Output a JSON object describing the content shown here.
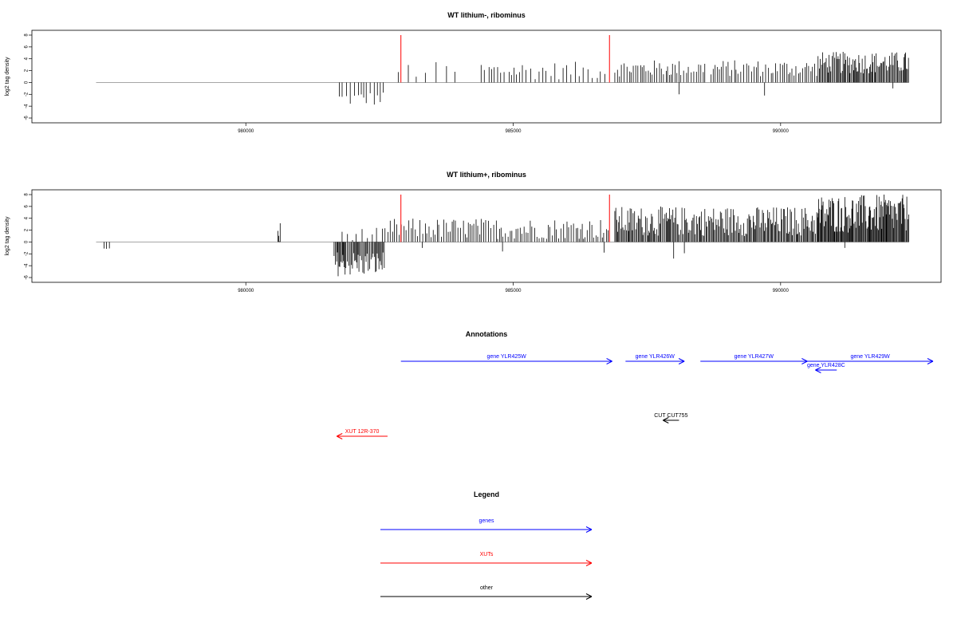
{
  "colors": {
    "gene": "#0000ff",
    "xut": "#ff0000",
    "other": "#000000",
    "marker": "#ff0000",
    "bar": "#000000",
    "baseline": "#999999"
  },
  "chart_data": [
    {
      "type": "bar",
      "title": "WT lithium-, ribominus",
      "ylabel": "log2 tag density",
      "xlim": [
        976000,
        993000
      ],
      "ylim": [
        -6,
        8
      ],
      "yticks": [
        "8",
        "6",
        "4",
        "2",
        "0",
        "-2",
        "-4",
        "-6"
      ],
      "xticks": [
        "980000",
        "985000",
        "990000"
      ],
      "baseline": [
        977200,
        992400
      ],
      "markers": [
        982900,
        986800
      ],
      "series": [
        {
          "segments": [
            {
              "start": 981750,
              "end": 982600,
              "min": -4,
              "max": -1.5,
              "step": 60
            },
            {
              "start": 982850,
              "end": 984000,
              "min": 0.5,
              "max": 3.5,
              "step": 200
            },
            {
              "start": 984400,
              "end": 986800,
              "min": 0.5,
              "max": 3.5,
              "step": 70
            },
            {
              "start": 986900,
              "end": 988600,
              "min": 1,
              "max": 3.8,
              "step": 40
            },
            {
              "start": 988700,
              "end": 990700,
              "min": 1,
              "max": 3.8,
              "step": 40
            },
            {
              "start": 990700,
              "end": 992400,
              "min": 1.5,
              "max": 5.2,
              "step": 20
            }
          ]
        },
        {
          "points": [
            [
              988100,
              -2
            ],
            [
              989700,
              -2.2
            ],
            [
              992100,
              -1
            ]
          ]
        }
      ]
    },
    {
      "type": "bar",
      "title": "WT lithium+, ribominus",
      "ylabel": "log2 tag density",
      "xlim": [
        976000,
        993000
      ],
      "ylim": [
        -6,
        8
      ],
      "yticks": [
        "8",
        "6",
        "4",
        "2",
        "0",
        "-2",
        "-4",
        "-6"
      ],
      "xticks": [
        "980000",
        "985000",
        "990000"
      ],
      "baseline": [
        977200,
        992400
      ],
      "markers": [
        982900,
        986800
      ],
      "series": [
        {
          "segments": [
            {
              "start": 977350,
              "end": 977450,
              "min": -2,
              "max": -0.8,
              "step": 40
            },
            {
              "start": 980600,
              "end": 980650,
              "min": -2.5,
              "max": 3.4,
              "step": 20
            },
            {
              "start": 981650,
              "end": 982600,
              "min": -5.8,
              "max": -1.5,
              "step": 20
            },
            {
              "start": 981800,
              "end": 982700,
              "min": 0.3,
              "max": 2.4,
              "step": 80
            },
            {
              "start": 982700,
              "end": 986800,
              "min": 0.5,
              "max": 4,
              "step": 40
            },
            {
              "start": 986900,
              "end": 990700,
              "min": 1,
              "max": 6,
              "step": 20
            },
            {
              "start": 990700,
              "end": 992400,
              "min": 1.5,
              "max": 8,
              "step": 15
            }
          ]
        },
        {
          "points": [
            [
              983300,
              -1
            ],
            [
              984800,
              -1.6
            ],
            [
              986700,
              -1.8
            ],
            [
              988000,
              -2.8
            ],
            [
              988200,
              -1.9
            ],
            [
              991200,
              -1
            ]
          ]
        }
      ]
    }
  ],
  "annotations": {
    "title": "Annotations",
    "items": [
      {
        "label": "gene YLR425W",
        "kind": "gene",
        "start": 982900,
        "end": 986850,
        "strand": "+",
        "row": 0
      },
      {
        "label": "gene YLR426W",
        "kind": "gene",
        "start": 987100,
        "end": 988200,
        "strand": "+",
        "row": 0
      },
      {
        "label": "gene YLR427W",
        "kind": "gene",
        "start": 988500,
        "end": 990500,
        "strand": "+",
        "row": 0
      },
      {
        "label": "gene YLR428C",
        "kind": "gene",
        "start": 990650,
        "end": 991050,
        "strand": "-",
        "row": 1
      },
      {
        "label": "gene YLR429W",
        "kind": "gene",
        "start": 990500,
        "end": 992850,
        "strand": "+",
        "row": 0
      },
      {
        "label": "CUT CUT755",
        "kind": "other",
        "start": 987800,
        "end": 988100,
        "strand": "-",
        "row": 2
      },
      {
        "label": "XUT 12R-370",
        "kind": "xut",
        "start": 981700,
        "end": 982650,
        "strand": "-",
        "row": 3
      }
    ]
  },
  "legend": {
    "title": "Legend",
    "items": [
      {
        "label": "genes",
        "kind": "gene"
      },
      {
        "label": "XUTs",
        "kind": "xut"
      },
      {
        "label": "other",
        "kind": "other"
      }
    ]
  }
}
